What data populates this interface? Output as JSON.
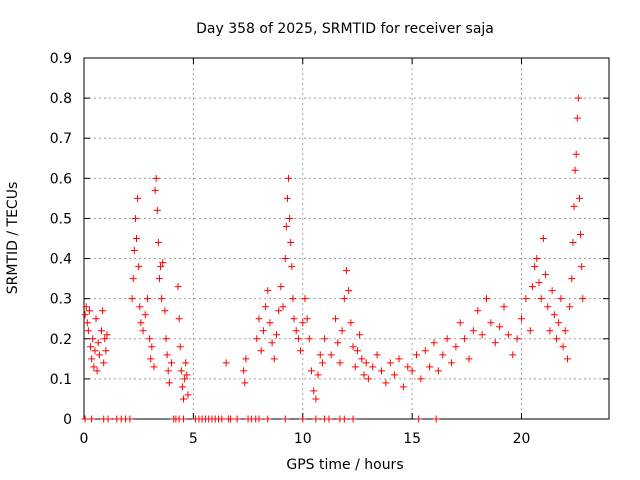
{
  "chart_data": {
    "type": "scatter",
    "title": "Day 358 of 2025, SRMTID for receiver saja",
    "xlabel": "GPS time / hours",
    "ylabel": "SRMTID / TECUs",
    "xlim": [
      0,
      24
    ],
    "ylim": [
      0,
      0.9
    ],
    "xticks": [
      0,
      5,
      10,
      15,
      20
    ],
    "xtick_labels": [
      "0",
      "5",
      "10",
      "15",
      "20"
    ],
    "yticks": [
      0,
      0.1,
      0.2,
      0.3,
      0.4,
      0.5,
      0.6,
      0.7,
      0.8,
      0.9
    ],
    "ytick_labels": [
      "0",
      "0.1",
      "0.2",
      "0.3",
      "0.4",
      "0.5",
      "0.6",
      "0.7",
      "0.8",
      "0.9"
    ],
    "grid": true,
    "marker": "+",
    "color": "#ff0000",
    "series": [
      {
        "name": "SRMTID",
        "points": [
          [
            0.05,
            0.26
          ],
          [
            0.1,
            0.28
          ],
          [
            0.15,
            0.24
          ],
          [
            0.2,
            0.22
          ],
          [
            0.25,
            0.27
          ],
          [
            0.3,
            0.18
          ],
          [
            0.35,
            0.15
          ],
          [
            0.4,
            0.2
          ],
          [
            0.45,
            0.13
          ],
          [
            0.5,
            0.17
          ],
          [
            0.55,
            0.25
          ],
          [
            0.6,
            0.12
          ],
          [
            0.65,
            0.19
          ],
          [
            0.7,
            0.16
          ],
          [
            0.8,
            0.22
          ],
          [
            0.85,
            0.27
          ],
          [
            0.9,
            0.14
          ],
          [
            0.95,
            0.2
          ],
          [
            1.0,
            0.17
          ],
          [
            1.05,
            0.21
          ],
          [
            2.2,
            0.3
          ],
          [
            2.25,
            0.35
          ],
          [
            2.3,
            0.42
          ],
          [
            2.35,
            0.5
          ],
          [
            2.4,
            0.45
          ],
          [
            2.45,
            0.55
          ],
          [
            2.5,
            0.38
          ],
          [
            2.55,
            0.28
          ],
          [
            2.6,
            0.24
          ],
          [
            2.7,
            0.22
          ],
          [
            2.8,
            0.26
          ],
          [
            2.9,
            0.3
          ],
          [
            3.0,
            0.2
          ],
          [
            3.05,
            0.15
          ],
          [
            3.1,
            0.18
          ],
          [
            3.2,
            0.13
          ],
          [
            3.25,
            0.57
          ],
          [
            3.3,
            0.6
          ],
          [
            3.35,
            0.52
          ],
          [
            3.4,
            0.44
          ],
          [
            3.45,
            0.35
          ],
          [
            3.5,
            0.38
          ],
          [
            3.55,
            0.3
          ],
          [
            3.6,
            0.39
          ],
          [
            3.7,
            0.27
          ],
          [
            3.75,
            0.2
          ],
          [
            3.8,
            0.16
          ],
          [
            3.85,
            0.12
          ],
          [
            3.9,
            0.09
          ],
          [
            4.0,
            0.14
          ],
          [
            4.3,
            0.33
          ],
          [
            4.35,
            0.25
          ],
          [
            4.4,
            0.18
          ],
          [
            4.45,
            0.12
          ],
          [
            4.5,
            0.08
          ],
          [
            4.55,
            0.05
          ],
          [
            4.6,
            0.1
          ],
          [
            4.65,
            0.14
          ],
          [
            4.7,
            0.11
          ],
          [
            4.75,
            0.06
          ],
          [
            6.5,
            0.14
          ],
          [
            7.3,
            0.12
          ],
          [
            7.35,
            0.09
          ],
          [
            7.4,
            0.15
          ],
          [
            7.9,
            0.2
          ],
          [
            8.0,
            0.25
          ],
          [
            8.1,
            0.17
          ],
          [
            8.2,
            0.22
          ],
          [
            8.3,
            0.28
          ],
          [
            8.4,
            0.32
          ],
          [
            8.5,
            0.24
          ],
          [
            8.6,
            0.19
          ],
          [
            8.7,
            0.15
          ],
          [
            8.8,
            0.21
          ],
          [
            8.9,
            0.27
          ],
          [
            9.0,
            0.33
          ],
          [
            9.1,
            0.28
          ],
          [
            9.2,
            0.4
          ],
          [
            9.25,
            0.48
          ],
          [
            9.3,
            0.55
          ],
          [
            9.35,
            0.6
          ],
          [
            9.4,
            0.5
          ],
          [
            9.45,
            0.44
          ],
          [
            9.5,
            0.38
          ],
          [
            9.55,
            0.3
          ],
          [
            9.6,
            0.25
          ],
          [
            9.7,
            0.22
          ],
          [
            9.8,
            0.2
          ],
          [
            9.9,
            0.17
          ],
          [
            10.0,
            0.24
          ],
          [
            10.1,
            0.3
          ],
          [
            10.2,
            0.25
          ],
          [
            10.3,
            0.2
          ],
          [
            10.4,
            0.12
          ],
          [
            10.5,
            0.07
          ],
          [
            10.6,
            0.05
          ],
          [
            10.7,
            0.11
          ],
          [
            10.8,
            0.16
          ],
          [
            10.9,
            0.14
          ],
          [
            11.0,
            0.2
          ],
          [
            11.3,
            0.16
          ],
          [
            11.5,
            0.25
          ],
          [
            11.6,
            0.19
          ],
          [
            11.7,
            0.14
          ],
          [
            11.8,
            0.22
          ],
          [
            11.9,
            0.3
          ],
          [
            12.0,
            0.37
          ],
          [
            12.1,
            0.32
          ],
          [
            12.2,
            0.24
          ],
          [
            12.3,
            0.18
          ],
          [
            12.4,
            0.13
          ],
          [
            12.5,
            0.17
          ],
          [
            12.6,
            0.21
          ],
          [
            12.7,
            0.15
          ],
          [
            12.8,
            0.11
          ],
          [
            12.9,
            0.14
          ],
          [
            13.0,
            0.1
          ],
          [
            13.2,
            0.13
          ],
          [
            13.4,
            0.16
          ],
          [
            13.6,
            0.12
          ],
          [
            13.8,
            0.09
          ],
          [
            14.0,
            0.14
          ],
          [
            14.2,
            0.11
          ],
          [
            14.4,
            0.15
          ],
          [
            14.6,
            0.08
          ],
          [
            14.8,
            0.13
          ],
          [
            15.0,
            0.12
          ],
          [
            15.2,
            0.16
          ],
          [
            15.4,
            0.1
          ],
          [
            15.6,
            0.17
          ],
          [
            15.8,
            0.13
          ],
          [
            16.0,
            0.19
          ],
          [
            16.2,
            0.12
          ],
          [
            16.4,
            0.16
          ],
          [
            16.6,
            0.2
          ],
          [
            16.8,
            0.14
          ],
          [
            17.0,
            0.18
          ],
          [
            17.2,
            0.24
          ],
          [
            17.4,
            0.2
          ],
          [
            17.6,
            0.15
          ],
          [
            17.8,
            0.22
          ],
          [
            18.0,
            0.27
          ],
          [
            18.2,
            0.21
          ],
          [
            18.4,
            0.3
          ],
          [
            18.6,
            0.24
          ],
          [
            18.8,
            0.19
          ],
          [
            19.0,
            0.23
          ],
          [
            19.2,
            0.28
          ],
          [
            19.4,
            0.21
          ],
          [
            19.6,
            0.16
          ],
          [
            19.8,
            0.2
          ],
          [
            20.0,
            0.25
          ],
          [
            20.2,
            0.3
          ],
          [
            20.4,
            0.22
          ],
          [
            20.5,
            0.33
          ],
          [
            20.6,
            0.38
          ],
          [
            20.7,
            0.4
          ],
          [
            20.8,
            0.34
          ],
          [
            20.9,
            0.3
          ],
          [
            21.0,
            0.45
          ],
          [
            21.1,
            0.36
          ],
          [
            21.2,
            0.28
          ],
          [
            21.3,
            0.22
          ],
          [
            21.4,
            0.32
          ],
          [
            21.5,
            0.26
          ],
          [
            21.6,
            0.2
          ],
          [
            21.7,
            0.24
          ],
          [
            21.8,
            0.3
          ],
          [
            21.9,
            0.18
          ],
          [
            22.0,
            0.22
          ],
          [
            22.1,
            0.15
          ],
          [
            22.2,
            0.28
          ],
          [
            22.3,
            0.35
          ],
          [
            22.35,
            0.44
          ],
          [
            22.4,
            0.53
          ],
          [
            22.45,
            0.62
          ],
          [
            22.5,
            0.66
          ],
          [
            22.55,
            0.75
          ],
          [
            22.6,
            0.8
          ],
          [
            22.65,
            0.55
          ],
          [
            22.7,
            0.46
          ],
          [
            22.75,
            0.38
          ],
          [
            22.8,
            0.3
          ]
        ],
        "zero_points": [
          0.05,
          0.35,
          0.9,
          1.1,
          1.5,
          1.7,
          1.9,
          2.1,
          4.1,
          4.2,
          4.35,
          4.55,
          5.1,
          5.25,
          5.4,
          5.55,
          5.7,
          5.85,
          6.0,
          6.15,
          6.3,
          6.6,
          6.7,
          7.0,
          7.5,
          7.65,
          7.85,
          8.0,
          8.4,
          9.2,
          10.0,
          10.6,
          11.0,
          11.2,
          11.7,
          11.9,
          12.3,
          15.3,
          16.1
        ]
      }
    ]
  }
}
